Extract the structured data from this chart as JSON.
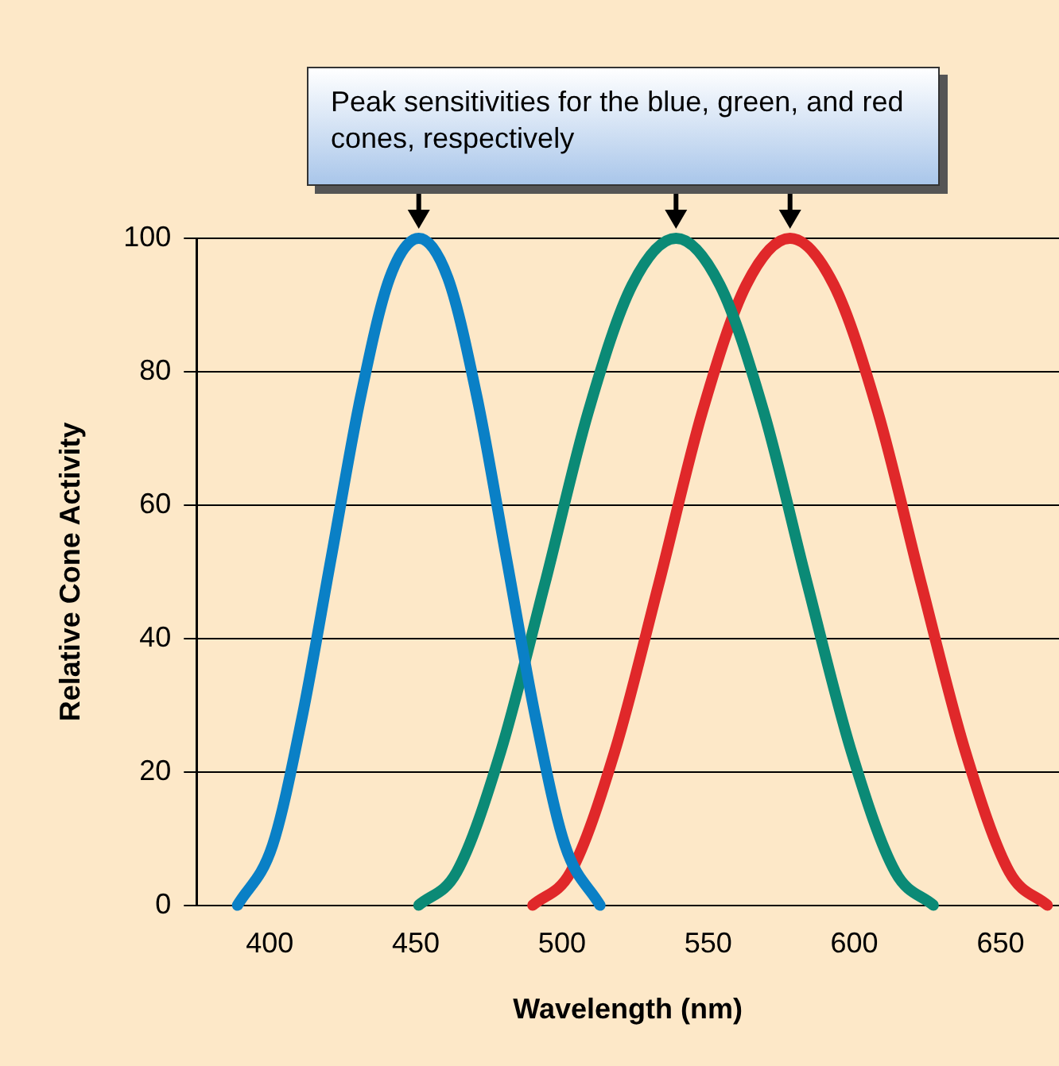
{
  "chart_data": {
    "type": "line",
    "xlabel": "Wavelength (nm)",
    "ylabel": "Relative Cone Activity",
    "annotations": [
      "Peak sensitivities for the blue, green, and red cones, respectively"
    ],
    "xlim": [
      375,
      670
    ],
    "xticks": [
      400,
      450,
      500,
      550,
      600,
      650
    ],
    "ylim": [
      0,
      100
    ],
    "yticks": [
      0,
      20,
      40,
      60,
      80,
      100
    ],
    "grid": "y",
    "legend": false,
    "marker": "none",
    "line_style": "solid",
    "series": [
      {
        "color": "#0a80c6",
        "x": [
          389,
          401,
          411,
          421,
          431,
          441,
          451,
          461,
          471,
          481,
          491,
          501,
          513
        ],
        "values": [
          0,
          9,
          28,
          52,
          76,
          94,
          100,
          94,
          76,
          52,
          28,
          9,
          0
        ]
      },
      {
        "color": "#0b8a76",
        "x": [
          451,
          464,
          479,
          494,
          509,
          524,
          539,
          554,
          569,
          584,
          599,
          614,
          627
        ],
        "values": [
          0,
          5,
          23,
          48,
          74,
          93,
          100,
          93,
          74,
          48,
          23,
          5,
          0
        ]
      },
      {
        "color": "#e0282a",
        "x": [
          490,
          503,
          518,
          533,
          548,
          563,
          578,
          593,
          608,
          623,
          638,
          653,
          666
        ],
        "values": [
          0,
          5,
          23,
          48,
          74,
          93,
          100,
          93,
          74,
          48,
          23,
          5,
          0
        ]
      }
    ]
  }
}
